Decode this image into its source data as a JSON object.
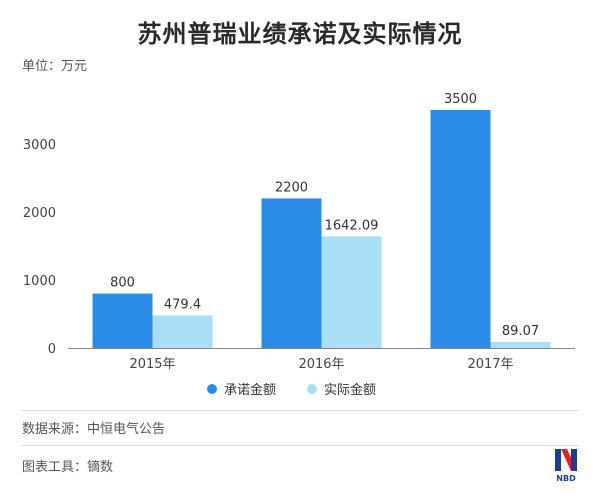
{
  "title": "苏州普瑞业绩承诺及实际情况",
  "unit_label": "单位：万元",
  "source_label": "数据来源：中恒电气公告",
  "tool_label": "图表工具：镝数",
  "logo_text": "NBD",
  "colors": {
    "promised": "#2b8ce8",
    "actual": "#a8dff7",
    "axis": "#888888"
  },
  "chart_data": {
    "type": "bar",
    "categories": [
      "2015年",
      "2016年",
      "2017年"
    ],
    "series": [
      {
        "name": "承诺金额",
        "values": [
          800,
          2200,
          3500
        ],
        "labels": [
          "800",
          "2200",
          "3500"
        ]
      },
      {
        "name": "实际金额",
        "values": [
          479.4,
          1642.09,
          89.07
        ],
        "labels": [
          "479.4",
          "1642.09",
          "89.07"
        ]
      }
    ],
    "yticks": [
      0,
      1000,
      2000,
      3000
    ],
    "ylim": [
      0,
      3500
    ],
    "grid": false,
    "legend": "bottom"
  }
}
